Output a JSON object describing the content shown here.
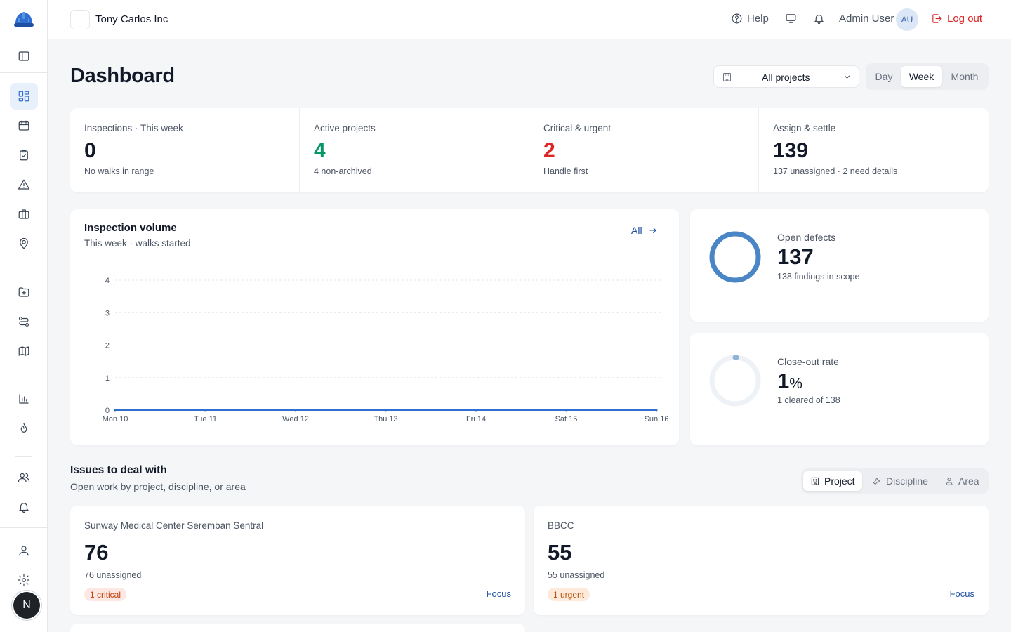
{
  "colors": {
    "accent": "#2f6fd1",
    "danger": "#dc2626",
    "success": "#059669",
    "ring": "#4a86c5"
  },
  "topbar": {
    "org_name": "Tony Carlos Inc",
    "help": "Help",
    "user_name": "Admin User",
    "user_initials": "AU",
    "logout": "Log out"
  },
  "sidebar": {
    "icons": [
      "layout-toggle-icon",
      "dashboard-icon",
      "calendar-icon",
      "clipboard-check-icon",
      "warning-icon",
      "briefcase-icon",
      "map-pin-user-icon",
      "folder-plus-icon",
      "workflow-icon",
      "map-icon",
      "bar-chart-icon",
      "flame-icon",
      "users-icon",
      "bell-icon",
      "user-icon",
      "settings-icon"
    ],
    "avatar_letter": "N"
  },
  "header": {
    "title": "Dashboard",
    "project_select": "All projects",
    "range_options": [
      "Day",
      "Week",
      "Month"
    ],
    "range_selected": "Week"
  },
  "kpis": [
    {
      "label": "Inspections · This week",
      "value": "0",
      "sub": "No walks in range",
      "color": "#111827"
    },
    {
      "label": "Active projects",
      "value": "4",
      "sub": "4 non-archived",
      "color": "#059669"
    },
    {
      "label": "Critical & urgent",
      "value": "2",
      "sub": "Handle first",
      "color": "#dc2626"
    },
    {
      "label": "Assign & settle",
      "value": "139",
      "sub": "137 unassigned · 2 need details",
      "color": "#111827"
    }
  ],
  "volume": {
    "title": "Inspection volume",
    "subtitle": "This week · walks started",
    "link": "All"
  },
  "chart_data": {
    "type": "line",
    "title": "Inspection volume",
    "xlabel": "",
    "ylabel": "",
    "categories": [
      "Mon 10",
      "Tue 11",
      "Wed 12",
      "Thu 13",
      "Fri 14",
      "Sat 15",
      "Sun 16"
    ],
    "values": [
      0,
      0,
      0,
      0,
      0,
      0,
      0
    ],
    "ylim": [
      0,
      4
    ],
    "yticks": [
      "0",
      "1",
      "2",
      "3",
      "4"
    ],
    "grid": true
  },
  "open_defects": {
    "title": "Open defects",
    "value": "137",
    "sub": "138 findings in scope",
    "fraction": 1.0
  },
  "close_out": {
    "title": "Close-out rate",
    "value": "1",
    "unit": "%",
    "sub": "1 cleared of 138",
    "fraction": 0.01
  },
  "issues": {
    "title": "Issues to deal with",
    "subtitle": "Open work by project, discipline, or area",
    "group_options": [
      "Project",
      "Discipline",
      "Area"
    ],
    "group_selected": "Project",
    "cards": [
      {
        "name": "Sunway Medical Center Seremban Sentral",
        "value": "76",
        "sub": "76 unassigned",
        "badge": "1 critical",
        "badge_kind": "critical",
        "action": "Focus"
      },
      {
        "name": "BBCC",
        "value": "55",
        "sub": "55 unassigned",
        "badge": "1 urgent",
        "badge_kind": "urgent",
        "action": "Focus"
      }
    ]
  }
}
